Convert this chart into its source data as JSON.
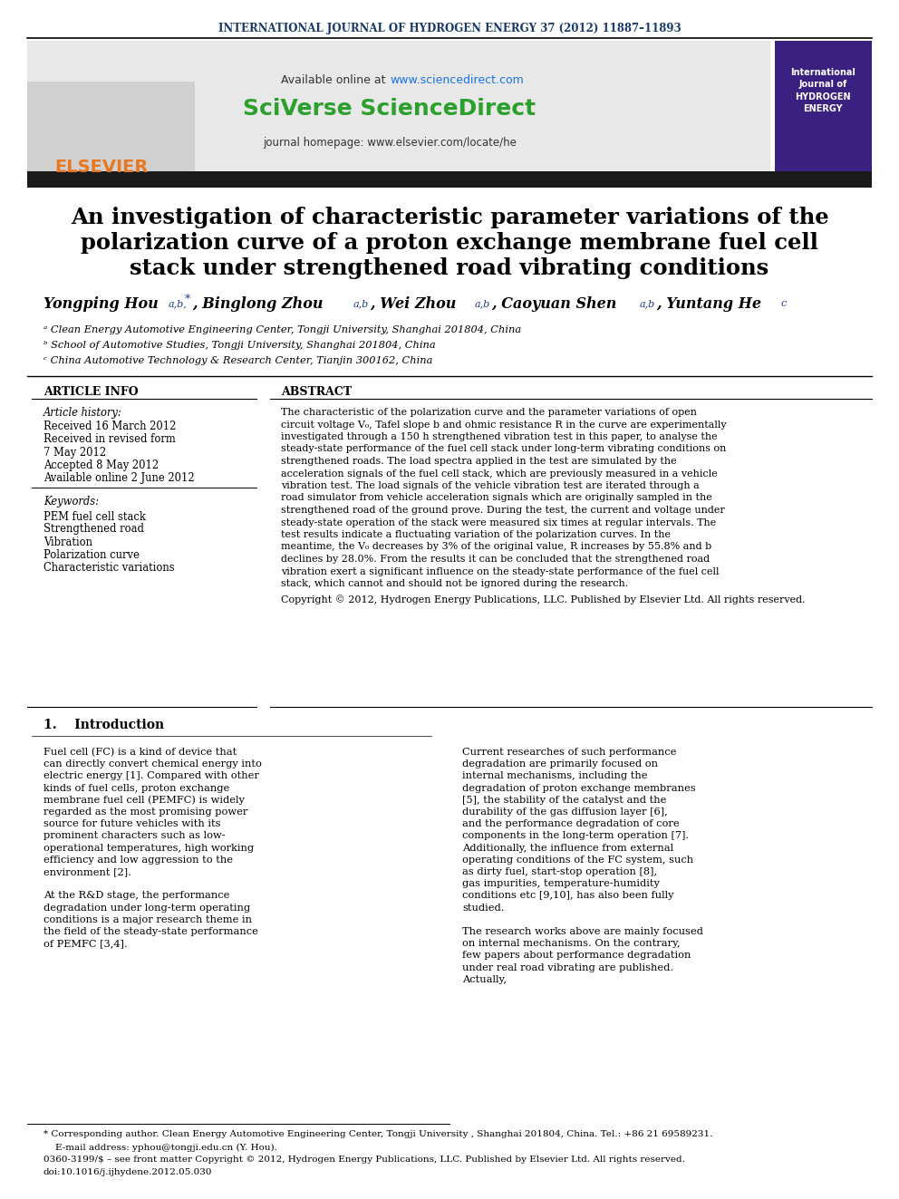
{
  "journal_line": "INTERNATIONAL JOURNAL OF HYDROGEN ENERGY 37 (2012) 11887–11893",
  "journal_line_color": "#1a3a6b",
  "available_online": "Available online at ",
  "url_sciencedirect": "www.sciencedirect.com",
  "sciverse_text": "SciVerse ScienceDirect",
  "sciverse_color": "#2ca02c",
  "journal_homepage": "journal homepage: www.elsevier.com/locate/he",
  "elsevier_text": "ELSEVIER",
  "elsevier_color": "#e87722",
  "title_line1": "An investigation of characteristic parameter variations of the",
  "title_line2": "polarization curve of a proton exchange membrane fuel cell",
  "title_line3": "stack under strengthened road vibrating conditions",
  "authors": "Yongping Hou ᵃʷ*, Binglong Zhou ᵃʷ, Wei Zhou ᵃʷ, Caoyuan Shen ᵃʷ,  Yuntang He ᶜ",
  "affil_a": "ᵃ Clean Energy Automotive Engineering Center, Tongji University, Shanghai 201804, China",
  "affil_b": "ᵇ School of Automotive Studies, Tongji University, Shanghai 201804, China",
  "affil_c": "ᶜ China Automotive Technology & Research Center, Tianjin 300162, China",
  "article_info_title": "ARTICLE INFO",
  "abstract_title": "ABSTRACT",
  "article_history_label": "Article history:",
  "received1": "Received 16 March 2012",
  "received2": "Received in revised form",
  "received2b": "7 May 2012",
  "accepted": "Accepted 8 May 2012",
  "available": "Available online 2 June 2012",
  "keywords_label": "Keywords:",
  "keyword1": "PEM fuel cell stack",
  "keyword2": "Strengthened road",
  "keyword3": "Vibration",
  "keyword4": "Polarization curve",
  "keyword5": "Characteristic variations",
  "abstract_text": "The characteristic of the polarization curve and the parameter variations of open circuit voltage V₀, Tafel slope b and ohmic resistance R in the curve are experimentally investigated through a 150 h strengthened vibration test in this paper, to analyse the steady-state performance of the fuel cell stack under long-term vibrating conditions on strengthened roads. The load spectra applied in the test are simulated by the acceleration signals of the fuel cell stack, which are previously measured in a vehicle vibration test. The load signals of the vehicle vibration test are iterated through a road simulator from vehicle acceleration signals which are originally sampled in the strengthened road of the ground prove. During the test, the current and voltage under steady-state operation of the stack were measured six times at regular intervals. The test results indicate a fluctuating variation of the polarization curves. In the meantime, the V₀ decreases by 3% of the original value, R increases by 55.8% and b declines by 28.0%. From the results it can be concluded that the strengthened road vibration exert a significant influence on the steady-state performance of the fuel cell stack, which cannot and should not be ignored during the research.",
  "copyright_text": "Copyright © 2012, Hydrogen Energy Publications, LLC. Published by Elsevier Ltd. All rights reserved.",
  "intro_title": "1.    Introduction",
  "intro_col1": "Fuel cell (FC) is a kind of device that can directly convert chemical energy into electric energy [1]. Compared with other kinds of fuel cells, proton exchange membrane fuel cell (PEMFC) is widely regarded as the most promising power source for future vehicles with its prominent characters such as low-operational temperatures, high working efficiency and low aggression to the environment [2].\n\n    At the R&D stage, the performance degradation under long-term operating conditions is a major research theme in the field of the steady-state performance of PEMFC [3,4].",
  "intro_col2": "Current researches of such performance degradation are primarily focused on internal mechanisms, including the degradation of proton exchange membranes [5], the stability of the catalyst and the durability of the gas diffusion layer [6], and the performance degradation of core components in the long-term operation [7]. Additionally, the influence from external operating conditions of the FC system, such as dirty fuel, start-stop operation [8], gas impurities, temperature-humidity conditions etc [9,10], has also been fully studied.\n\n    The research works above are mainly focused on internal mechanisms. On the contrary, few papers about performance degradation under real road vibrating are published. Actually,",
  "footnote1": "* Corresponding author. Clean Energy Automotive Engineering Center, Tongji University , Shanghai 201804, China. Tel.: +86 21 69589231.",
  "footnote2": "    E-mail address: yphou@tongji.edu.cn (Y. Hou).",
  "footnote3": "0360-3199/$ – see front matter Copyright © 2012, Hydrogen Energy Publications, LLC. Published by Elsevier Ltd. All rights reserved.",
  "footnote4": "doi:10.1016/j.ijhydene.2012.05.030",
  "bg_color": "#ffffff",
  "text_color": "#000000",
  "header_bg": "#e8e8e8"
}
